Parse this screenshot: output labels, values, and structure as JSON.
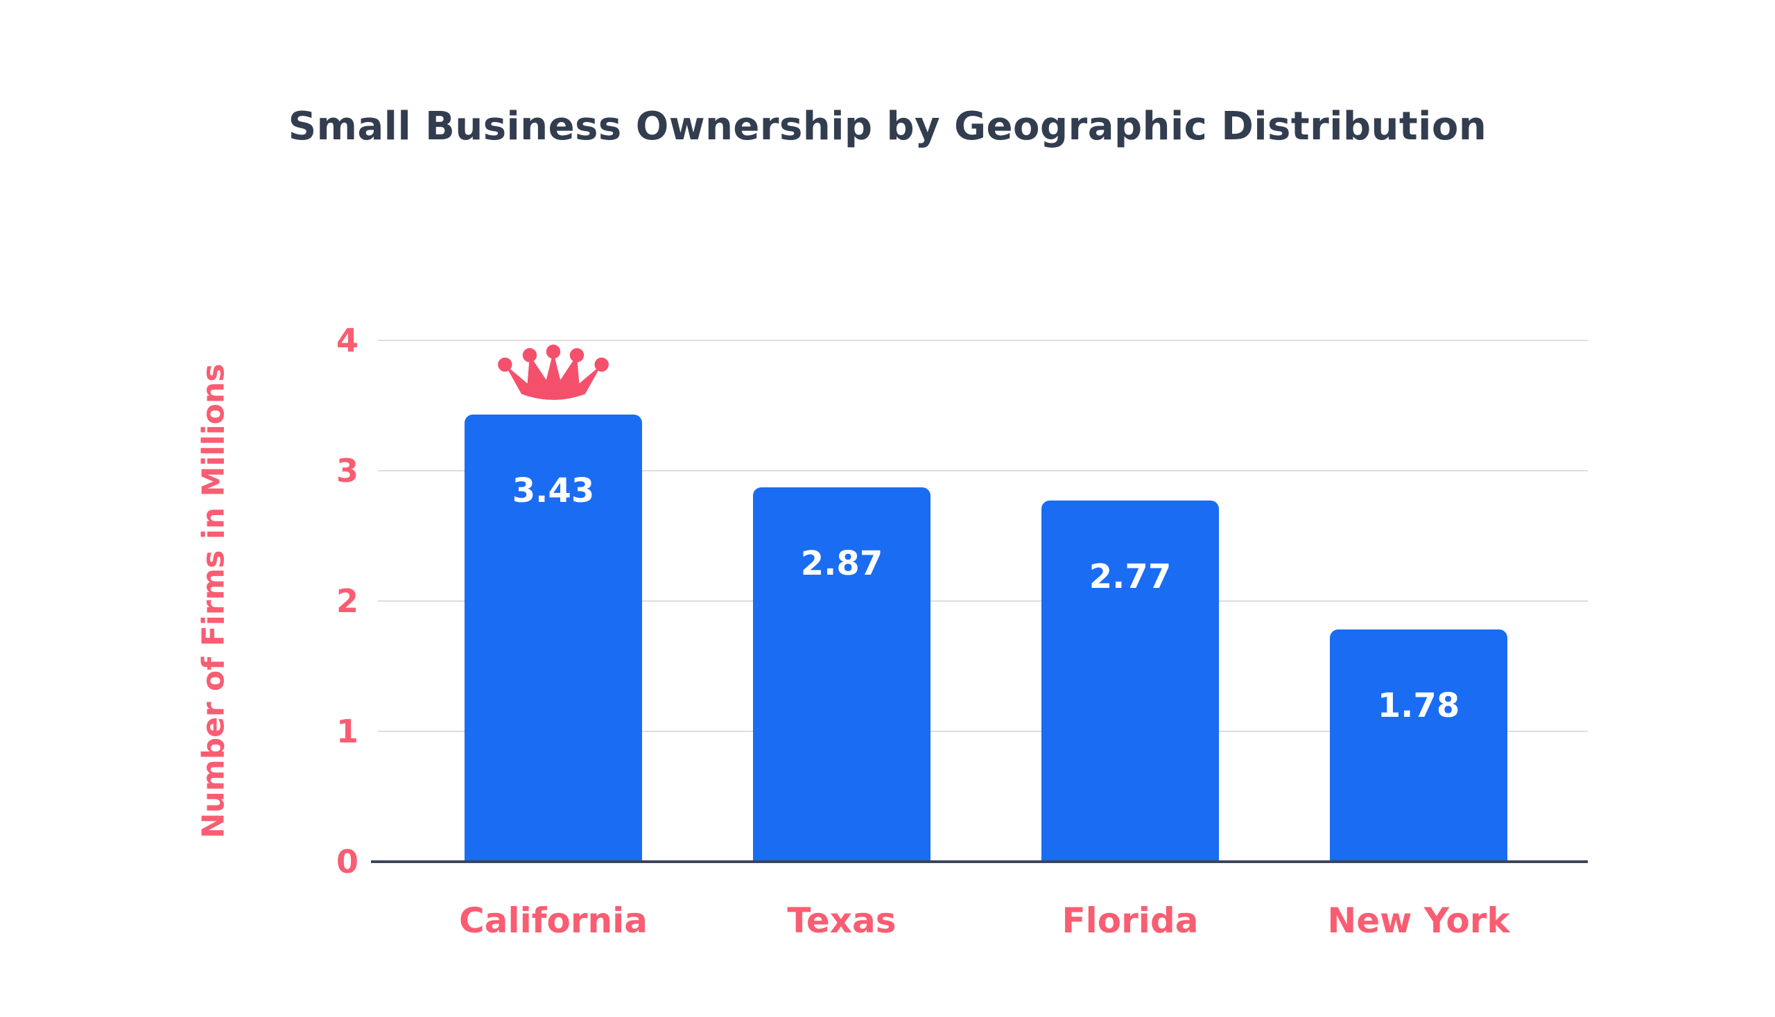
{
  "chart_data": {
    "type": "bar",
    "title": "Small Business Ownership by Geographic Distribution",
    "categories": [
      "California",
      "Texas",
      "Florida",
      "New York"
    ],
    "values": [
      3.43,
      2.87,
      2.77,
      1.78
    ],
    "value_label_format": "2dp",
    "xlabel": "",
    "ylabel": "Number of Firms in Millions",
    "ylim": [
      0,
      4
    ],
    "yticks": [
      0,
      1,
      2,
      3,
      4
    ],
    "grid": true,
    "legend": false,
    "annotation": {
      "type": "crown",
      "category": "California"
    },
    "colors": {
      "background": "#ffffff",
      "bar": "#1a6cf3",
      "value_label": "#ffffff",
      "axis_text": "#f95d72",
      "crown": "#f4506c",
      "title": "#333d50",
      "gridline": "#dddddf",
      "axis_line": "#3d4658"
    }
  }
}
